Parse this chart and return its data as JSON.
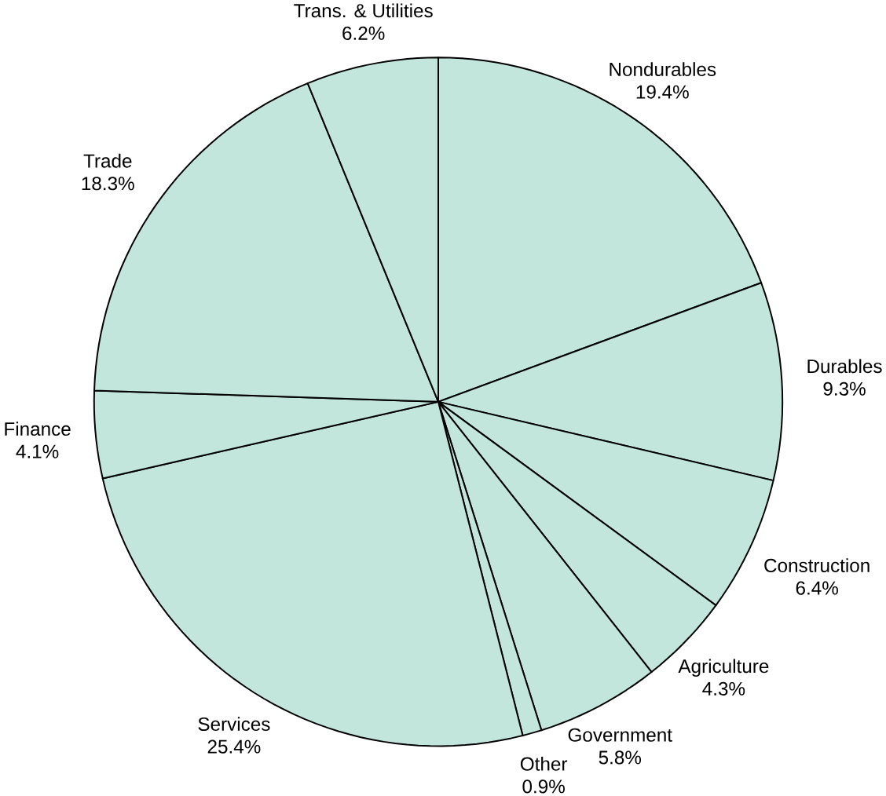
{
  "chart_data": {
    "type": "pie",
    "categories": [
      "Nondurables",
      "Durables",
      "Construction",
      "Agriculture",
      "Government",
      "Other",
      "Services",
      "Finance",
      "Trade",
      "Trans. & Utilities"
    ],
    "values": [
      19.4,
      9.3,
      6.4,
      4.3,
      5.8,
      0.9,
      25.4,
      4.1,
      18.3,
      6.2
    ],
    "value_labels": [
      "19.4%",
      "9.3%",
      "6.4%",
      "4.3%",
      "5.8%",
      "0.9%",
      "25.4%",
      "4.1%",
      "18.3%",
      "6.2%"
    ],
    "colors": [
      "#c2e6dc",
      "#c2e6dc",
      "#c2e6dc",
      "#c2e6dc",
      "#c2e6dc",
      "#c2e6dc",
      "#c2e6dc",
      "#c2e6dc",
      "#c2e6dc",
      "#c2e6dc"
    ]
  }
}
